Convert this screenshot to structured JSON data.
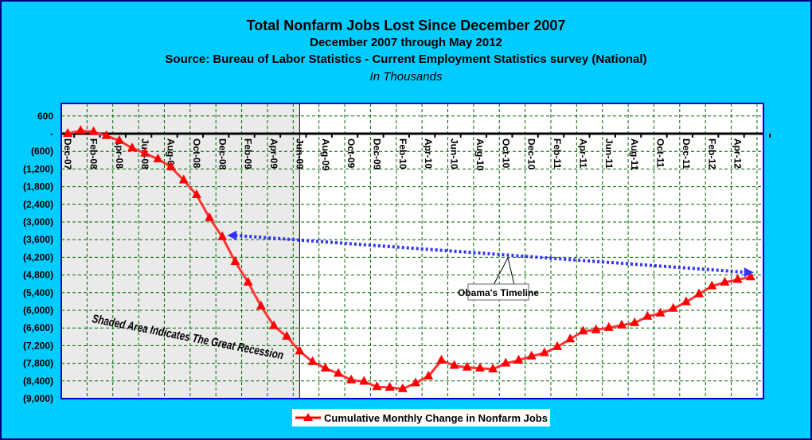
{
  "header": {
    "title": "Total Nonfarm Jobs Lost Since December 2007",
    "subtitle": "December 2007 through May 2012",
    "source": "Source: Bureau of Labor Statistics - Current Employment Statistics survey (National)",
    "units": "In Thousands"
  },
  "chart_data": {
    "type": "line",
    "title": "Total Nonfarm Jobs Lost Since December 2007",
    "xlabel": "",
    "ylabel": "In Thousands",
    "ylim": [
      -9000,
      600
    ],
    "yticks": [
      600,
      0,
      -600,
      -1200,
      -1800,
      -2400,
      -3000,
      -3600,
      -4200,
      -4800,
      -5400,
      -6000,
      -6600,
      -7200,
      -7800,
      -8400,
      -9000
    ],
    "ytick_labels": [
      "600",
      "-",
      "(600)",
      "(1,200)",
      "(1,800)",
      "(2,400)",
      "(3,000)",
      "(3,600)",
      "(4,200)",
      "(4,800)",
      "(5,400)",
      "(6,000)",
      "(6,600)",
      "(7,200)",
      "(7,800)",
      "(8,400)",
      "(9,000)"
    ],
    "xtick_labels": [
      "Dec-07",
      "Feb-08",
      "Apr-08",
      "Jun-08",
      "Aug-08",
      "Oct-08",
      "Dec-08",
      "Feb-09",
      "Apr-09",
      "Jun-09",
      "Aug-09",
      "Oct-09",
      "Dec-09",
      "Feb-10",
      "Apr-10",
      "Jun-10",
      "Aug-10",
      "Oct-10",
      "Dec-10",
      "Feb-11",
      "Apr-11",
      "Jun-11",
      "Aug-11",
      "Oct-11",
      "Dec-11",
      "Feb-12",
      "Apr-12"
    ],
    "grid": true,
    "legend_position": "bottom",
    "series": [
      {
        "name": "Cumulative Monthly Change in Nonfarm Jobs",
        "color": "#FF0000",
        "values": [
          0,
          100,
          60,
          -70,
          -235,
          -490,
          -670,
          -860,
          -1130,
          -1580,
          -2080,
          -2860,
          -3510,
          -4350,
          -5050,
          -5860,
          -6530,
          -6890,
          -7390,
          -7750,
          -7970,
          -8150,
          -8370,
          -8420,
          -8600,
          -8620,
          -8670,
          -8470,
          -8240,
          -7700,
          -7880,
          -7940,
          -7970,
          -8000,
          -7800,
          -7700,
          -7560,
          -7450,
          -7240,
          -6980,
          -6710,
          -6670,
          -6590,
          -6510,
          -6430,
          -6210,
          -6100,
          -5940,
          -5720,
          -5450,
          -5180,
          -5050,
          -4960,
          -4870
        ]
      }
    ],
    "shaded_region": {
      "from": "Dec-07",
      "to": "Jun-09",
      "label": "Shaded Area Indicates The Great Recession"
    },
    "annotation": {
      "label": "Obama's Timeline",
      "from": "Dec-08",
      "to": "May-12",
      "color": "#3333FF"
    }
  }
}
